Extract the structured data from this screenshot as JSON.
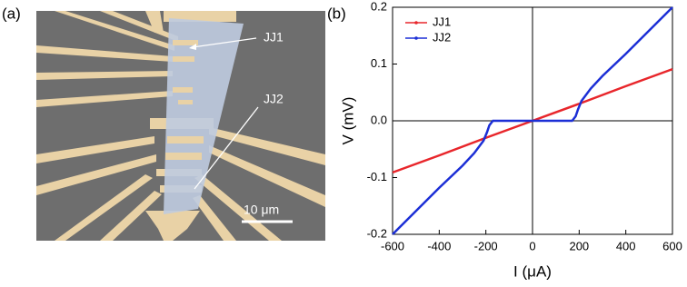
{
  "panel_a": {
    "label": "(a)",
    "annotations": [
      "JJ1",
      "JJ2"
    ],
    "scale_bar": "10 μm"
  },
  "panel_b_label": "(b)",
  "chart_data": {
    "type": "line",
    "x_label": "I (μA)",
    "y_label": "V (mV)",
    "xlim": [
      -600,
      600
    ],
    "xticks": [
      -600,
      -400,
      -200,
      0,
      200,
      400,
      600
    ],
    "ylim": [
      -0.2,
      0.2
    ],
    "yticks": [
      -0.2,
      -0.1,
      {
        "value": 0,
        "label": "0.0"
      },
      0.1,
      0.2
    ],
    "legend": "upper left",
    "series": [
      {
        "name": "JJ1",
        "color": "#e8262b",
        "x": [
          -600,
          -400,
          -200,
          0,
          200,
          400,
          600
        ],
        "values": [
          -0.091,
          -0.061,
          -0.03,
          0,
          0.03,
          0.061,
          0.091
        ]
      },
      {
        "name": "JJ2",
        "color": "#1c2fd6",
        "x": [
          -600,
          -400,
          -300,
          -250,
          -210,
          -195,
          -185,
          -170,
          170,
          185,
          195,
          210,
          250,
          300,
          400,
          600
        ],
        "values": [
          -0.2,
          -0.118,
          -0.079,
          -0.057,
          -0.035,
          -0.02,
          -0.008,
          0,
          0,
          0.008,
          0.02,
          0.035,
          0.057,
          0.079,
          0.118,
          0.2
        ]
      }
    ]
  }
}
